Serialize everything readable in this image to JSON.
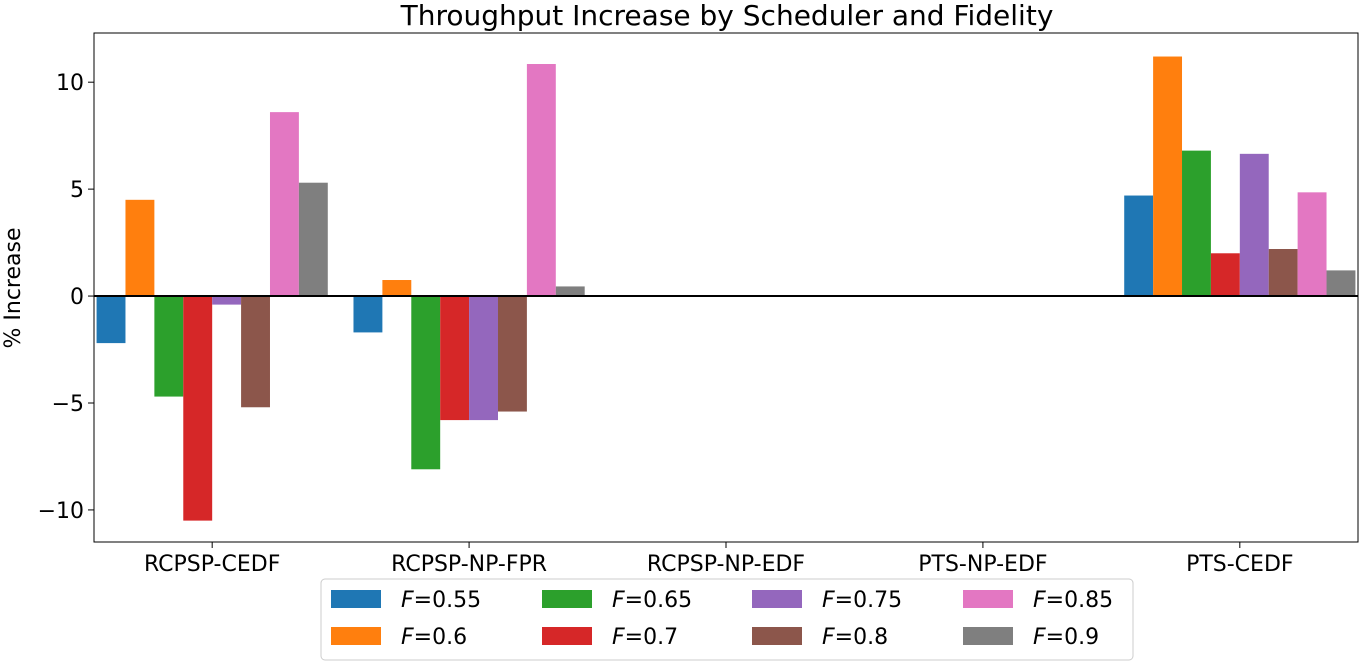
{
  "chart_data": {
    "type": "bar",
    "title": "Throughput Increase by Scheduler and Fidelity",
    "xlabel": "",
    "ylabel": "% Increase",
    "categories": [
      "RCPSP-CEDF",
      "RCPSP-NP-FPR",
      "RCPSP-NP-EDF",
      "PTS-NP-EDF",
      "PTS-CEDF"
    ],
    "ylim": [
      -11.5,
      12.3
    ],
    "yticks": [
      -10,
      -5,
      0,
      5,
      10
    ],
    "ytick_labels": [
      "−10",
      "−5",
      "0",
      "5",
      "10"
    ],
    "grid": false,
    "legend_position": "below plot, centered, 4 columns",
    "legend_var": "F",
    "series": [
      {
        "name": "F=0.55",
        "label_value": "0.55",
        "color": "#1f77b4",
        "values": [
          -2.2,
          -1.7,
          0,
          0,
          4.7
        ]
      },
      {
        "name": "F=0.6",
        "label_value": "0.6",
        "color": "#ff7f0e",
        "values": [
          4.5,
          0.75,
          0,
          0,
          11.2
        ]
      },
      {
        "name": "F=0.65",
        "label_value": "0.65",
        "color": "#2ca02c",
        "values": [
          -4.7,
          -8.1,
          0,
          0,
          6.8
        ]
      },
      {
        "name": "F=0.7",
        "label_value": "0.7",
        "color": "#d62728",
        "values": [
          -10.5,
          -5.8,
          0,
          0,
          2.0
        ]
      },
      {
        "name": "F=0.75",
        "label_value": "0.75",
        "color": "#9467bd",
        "values": [
          -0.4,
          -5.8,
          0,
          0,
          6.65
        ]
      },
      {
        "name": "F=0.8",
        "label_value": "0.8",
        "color": "#8c564b",
        "values": [
          -5.2,
          -5.4,
          0,
          0,
          2.2
        ]
      },
      {
        "name": "F=0.85",
        "label_value": "0.85",
        "color": "#e377c2",
        "values": [
          8.6,
          10.85,
          0,
          0,
          4.85
        ]
      },
      {
        "name": "F=0.9",
        "label_value": "0.9",
        "color": "#7f7f7f",
        "values": [
          5.3,
          0.45,
          0,
          0,
          1.2
        ]
      }
    ]
  }
}
